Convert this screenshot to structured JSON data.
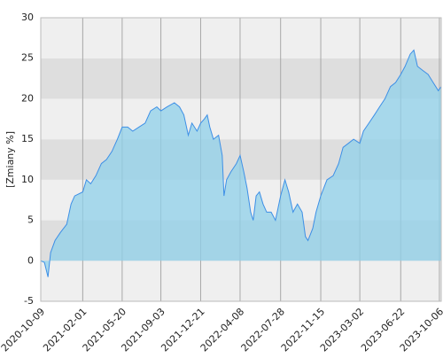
{
  "chart_data": {
    "type": "area",
    "y_label": "[Zmiany %]",
    "color": "#3d8fe6",
    "fill": "#8fd0ea",
    "xlim": [
      "2020-10-09",
      "2023-10-11"
    ],
    "xticks": [
      "2020-10-09",
      "2021-02-01",
      "2021-05-20",
      "2021-09-03",
      "2021-12-21",
      "2022-04-08",
      "2022-07-28",
      "2022-11-15",
      "2023-03-02",
      "2023-06-22",
      "2023-10-06"
    ],
    "ylim": [
      -5,
      30
    ],
    "yticks": [
      -5,
      0,
      5,
      10,
      15,
      20,
      25,
      30
    ],
    "grid": true,
    "x": [
      "2020-10-09",
      "2020-10-19",
      "2020-10-29",
      "2020-11-05",
      "2020-11-17",
      "2020-12-02",
      "2020-12-19",
      "2020-12-31",
      "2021-01-10",
      "2021-02-01",
      "2021-02-11",
      "2021-02-23",
      "2021-03-09",
      "2021-03-24",
      "2021-04-07",
      "2021-04-22",
      "2021-05-07",
      "2021-05-20",
      "2021-06-04",
      "2021-06-18",
      "2021-07-05",
      "2021-07-22",
      "2021-08-06",
      "2021-08-23",
      "2021-09-03",
      "2021-09-20",
      "2021-10-10",
      "2021-10-24",
      "2021-11-05",
      "2021-11-17",
      "2021-11-27",
      "2021-12-11",
      "2021-12-21",
      "2021-12-31",
      "2022-01-08",
      "2022-01-15",
      "2022-01-25",
      "2022-02-08",
      "2022-02-18",
      "2022-02-23",
      "2022-03-02",
      "2022-03-14",
      "2022-03-29",
      "2022-04-08",
      "2022-04-18",
      "2022-04-27",
      "2022-05-07",
      "2022-05-14",
      "2022-05-22",
      "2022-05-31",
      "2022-06-10",
      "2022-06-20",
      "2022-07-02",
      "2022-07-14",
      "2022-07-28",
      "2022-08-09",
      "2022-08-19",
      "2022-08-31",
      "2022-09-12",
      "2022-09-25",
      "2022-10-04",
      "2022-10-11",
      "2022-10-24",
      "2022-11-02",
      "2022-11-15",
      "2022-12-02",
      "2022-12-19",
      "2023-01-03",
      "2023-01-15",
      "2023-01-30",
      "2023-02-13",
      "2023-03-02",
      "2023-03-12",
      "2023-03-27",
      "2023-04-11",
      "2023-04-25",
      "2023-05-10",
      "2023-05-25",
      "2023-06-08",
      "2023-06-22",
      "2023-07-04",
      "2023-07-18",
      "2023-07-28",
      "2023-08-07",
      "2023-08-21",
      "2023-09-05",
      "2023-09-19",
      "2023-10-03",
      "2023-10-11"
    ],
    "values": [
      0,
      -0.2,
      -2,
      1,
      2.5,
      3.5,
      4.5,
      7,
      8,
      8.5,
      10,
      9.5,
      10.5,
      12,
      12.5,
      13.5,
      15,
      16.5,
      16.5,
      16,
      16.5,
      17,
      18.5,
      19,
      18.5,
      19,
      19.5,
      19,
      18,
      15.5,
      17,
      16,
      17,
      17.5,
      18,
      16.5,
      15,
      15.5,
      13,
      8,
      10,
      11,
      12,
      13,
      11,
      9,
      6,
      5,
      8,
      8.5,
      7,
      6,
      6,
      5,
      8,
      10,
      8.5,
      6,
      7,
      6,
      3,
      2.5,
      4,
      6,
      8,
      10,
      10.5,
      12,
      14,
      14.5,
      15,
      14.5,
      16,
      17,
      18,
      19,
      20,
      21.5,
      22,
      23,
      24,
      25.5,
      26,
      24,
      23.5,
      23,
      22,
      21,
      21.5
    ]
  }
}
